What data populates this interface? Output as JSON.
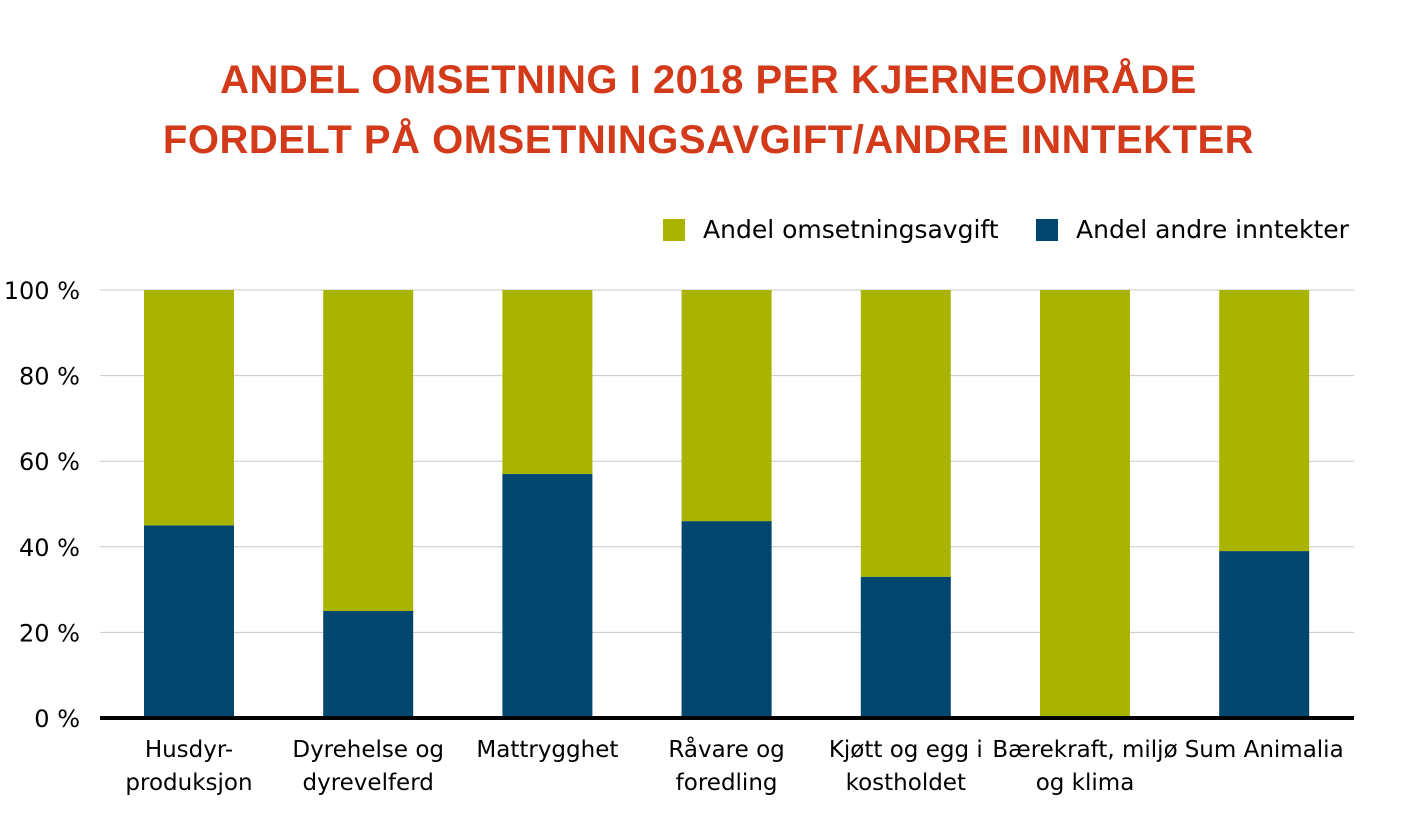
{
  "chart_data": {
    "type": "bar",
    "stacked": true,
    "title_line1": "ANDEL OMSETNING I 2018 PER KJERNEOMRÅDE",
    "title_line2": "FORDELT PÅ OMSETNINGSAVGIFT/ANDRE INNTEKTER",
    "categories": [
      [
        "Husdyr-",
        "produksjon"
      ],
      [
        "Dyrehelse og",
        "dyrevelferd"
      ],
      [
        "Mattrygghet"
      ],
      [
        "Råvare og",
        "foredling"
      ],
      [
        "Kjøtt og egg i",
        "kostholdet"
      ],
      [
        "Bærekraft, miljø",
        "og klima"
      ],
      [
        "Sum Animalia"
      ]
    ],
    "series": [
      {
        "name": "Andel omsetningsavgift",
        "color": "#a8b400",
        "values": [
          55,
          75,
          43,
          54,
          67,
          100,
          61
        ]
      },
      {
        "name": "Andel andre inntekter",
        "color": "#00466e",
        "values": [
          45,
          25,
          57,
          46,
          33,
          0,
          39
        ]
      }
    ],
    "yticks": [
      "0 %",
      "20 %",
      "40 %",
      "60 %",
      "80 %",
      "100 %"
    ],
    "ylim": [
      0,
      100
    ],
    "grid": true,
    "legend_position": "top-right"
  }
}
